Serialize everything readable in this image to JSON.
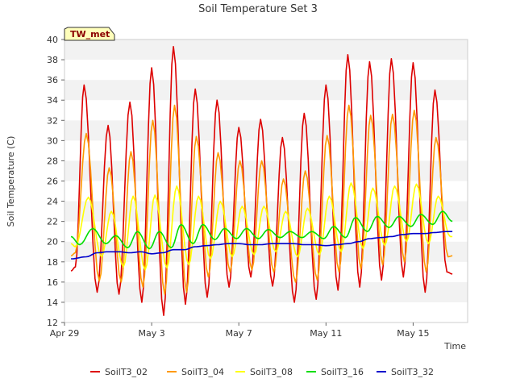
{
  "chart_data": {
    "type": "line",
    "title": "Soil Temperature Set 3",
    "xlabel": "Time",
    "ylabel": "Soil Temperature (C)",
    "annotation": "TW_met",
    "x_range_days": [
      0,
      18.5
    ],
    "xlim_labels": [
      "Apr 29",
      "May 3",
      "May 7",
      "May 11",
      "May 15"
    ],
    "x_tick_days": [
      0,
      4,
      8,
      12,
      16
    ],
    "ylim": [
      12,
      40
    ],
    "y_ticks": [
      12,
      14,
      16,
      18,
      20,
      22,
      24,
      26,
      28,
      30,
      32,
      34,
      36,
      38,
      40
    ],
    "grid": true,
    "legend_position": "bottom",
    "series": [
      {
        "name": "SoilT3_02",
        "color": "#dd0000",
        "sample": "daily-extremes",
        "days": [
          0.3,
          0.5,
          0.9,
          1.5,
          2.0,
          2.5,
          3.0,
          3.55,
          4.0,
          4.55,
          5.0,
          5.55,
          6.0,
          6.55,
          7.0,
          7.55,
          8.0,
          8.55,
          9.0,
          9.55,
          10.0,
          10.55,
          11.0,
          11.55,
          12.0,
          12.55,
          13.0,
          13.55,
          14.0,
          14.55,
          15.0,
          15.55,
          16.0,
          16.55,
          17.0,
          17.55,
          17.8
        ],
        "values": [
          17.1,
          17.5,
          35.5,
          15.0,
          31.5,
          14.8,
          33.8,
          14.0,
          37.2,
          12.7,
          39.3,
          13.8,
          35.1,
          14.5,
          34.0,
          15.5,
          31.3,
          16.5,
          32.1,
          15.6,
          30.3,
          14.0,
          32.7,
          14.3,
          35.5,
          15.2,
          38.5,
          15.5,
          37.8,
          16.2,
          38.1,
          16.5,
          37.7,
          15.0,
          35.0,
          17.0,
          16.8
        ]
      },
      {
        "name": "SoilT3_04",
        "color": "#ff9900",
        "sample": "daily-extremes",
        "days": [
          0.3,
          0.5,
          1.0,
          1.6,
          2.05,
          2.6,
          3.05,
          3.6,
          4.05,
          4.6,
          5.05,
          5.6,
          6.05,
          6.6,
          7.05,
          7.6,
          8.05,
          8.6,
          9.05,
          9.6,
          10.05,
          10.6,
          11.05,
          11.6,
          12.05,
          12.6,
          13.05,
          13.6,
          14.05,
          14.6,
          15.05,
          15.6,
          16.05,
          16.6,
          17.05,
          17.6,
          17.8
        ],
        "values": [
          18.6,
          18.9,
          30.7,
          16.1,
          27.3,
          16.0,
          28.9,
          15.5,
          32.0,
          14.8,
          33.5,
          15.0,
          30.4,
          16.5,
          28.8,
          17.0,
          28.0,
          17.2,
          28.0,
          17.0,
          26.2,
          16.0,
          27.0,
          16.2,
          30.5,
          17.0,
          33.5,
          17.3,
          32.5,
          17.7,
          32.6,
          18.0,
          33.0,
          17.0,
          30.3,
          18.5,
          18.6
        ]
      },
      {
        "name": "SoilT3_08",
        "color": "#ffff00",
        "sample": "daily-extremes",
        "days": [
          0.3,
          0.5,
          1.1,
          1.7,
          2.15,
          2.7,
          3.15,
          3.7,
          4.15,
          4.7,
          5.15,
          5.7,
          6.15,
          6.7,
          7.15,
          7.7,
          8.15,
          8.7,
          9.15,
          9.7,
          10.15,
          10.7,
          11.15,
          11.7,
          12.15,
          12.7,
          13.15,
          13.7,
          14.15,
          14.7,
          15.15,
          15.7,
          16.15,
          16.7,
          17.15,
          17.7,
          17.8
        ],
        "values": [
          19.8,
          19.5,
          24.4,
          18.5,
          23.0,
          17.5,
          24.5,
          17.2,
          24.6,
          17.4,
          25.5,
          17.7,
          24.5,
          18.3,
          24.0,
          18.5,
          23.5,
          18.7,
          23.5,
          19.0,
          23.0,
          18.5,
          23.3,
          18.7,
          24.5,
          19.0,
          25.8,
          19.3,
          25.3,
          19.6,
          25.5,
          20.0,
          25.7,
          19.8,
          24.5,
          20.5,
          20.5
        ]
      },
      {
        "name": "SoilT3_16",
        "color": "#00dd00",
        "sample": "daily-extremes",
        "days": [
          0.3,
          0.7,
          1.3,
          1.9,
          2.35,
          2.9,
          3.35,
          3.9,
          4.35,
          4.9,
          5.35,
          5.9,
          6.35,
          6.9,
          7.35,
          7.9,
          8.35,
          8.9,
          9.35,
          9.9,
          10.35,
          10.9,
          11.35,
          11.9,
          12.35,
          12.9,
          13.35,
          13.9,
          14.35,
          14.9,
          15.35,
          15.9,
          16.35,
          16.9,
          17.35,
          17.8
        ],
        "values": [
          20.5,
          19.7,
          21.3,
          19.8,
          20.6,
          19.4,
          21.0,
          19.3,
          21.0,
          19.4,
          21.7,
          19.8,
          21.7,
          20.2,
          21.3,
          20.3,
          21.3,
          20.3,
          21.2,
          20.4,
          21.0,
          20.4,
          21.0,
          20.3,
          21.5,
          20.4,
          22.4,
          21.0,
          22.5,
          21.4,
          22.5,
          21.5,
          22.7,
          21.7,
          23.0,
          22.0
        ]
      },
      {
        "name": "SoilT3_32",
        "color": "#0000cc",
        "sample": "trend",
        "days": [
          0.3,
          1.0,
          1.5,
          2.0,
          2.5,
          3.0,
          3.5,
          4.0,
          4.5,
          5.0,
          5.5,
          6.0,
          6.5,
          7.0,
          7.5,
          8.0,
          8.5,
          9.0,
          9.5,
          10.0,
          10.5,
          11.0,
          11.5,
          12.0,
          12.5,
          13.0,
          13.5,
          14.0,
          14.5,
          15.0,
          15.5,
          16.0,
          16.5,
          17.0,
          17.5,
          17.8
        ],
        "values": [
          18.3,
          18.5,
          18.9,
          19.0,
          19.0,
          18.9,
          19.0,
          18.8,
          18.9,
          19.2,
          19.2,
          19.5,
          19.6,
          19.7,
          19.8,
          19.8,
          19.7,
          19.7,
          19.8,
          19.8,
          19.8,
          19.7,
          19.7,
          19.6,
          19.7,
          19.8,
          20.0,
          20.3,
          20.4,
          20.5,
          20.7,
          20.8,
          20.8,
          20.9,
          21.0,
          21.0
        ]
      }
    ]
  }
}
